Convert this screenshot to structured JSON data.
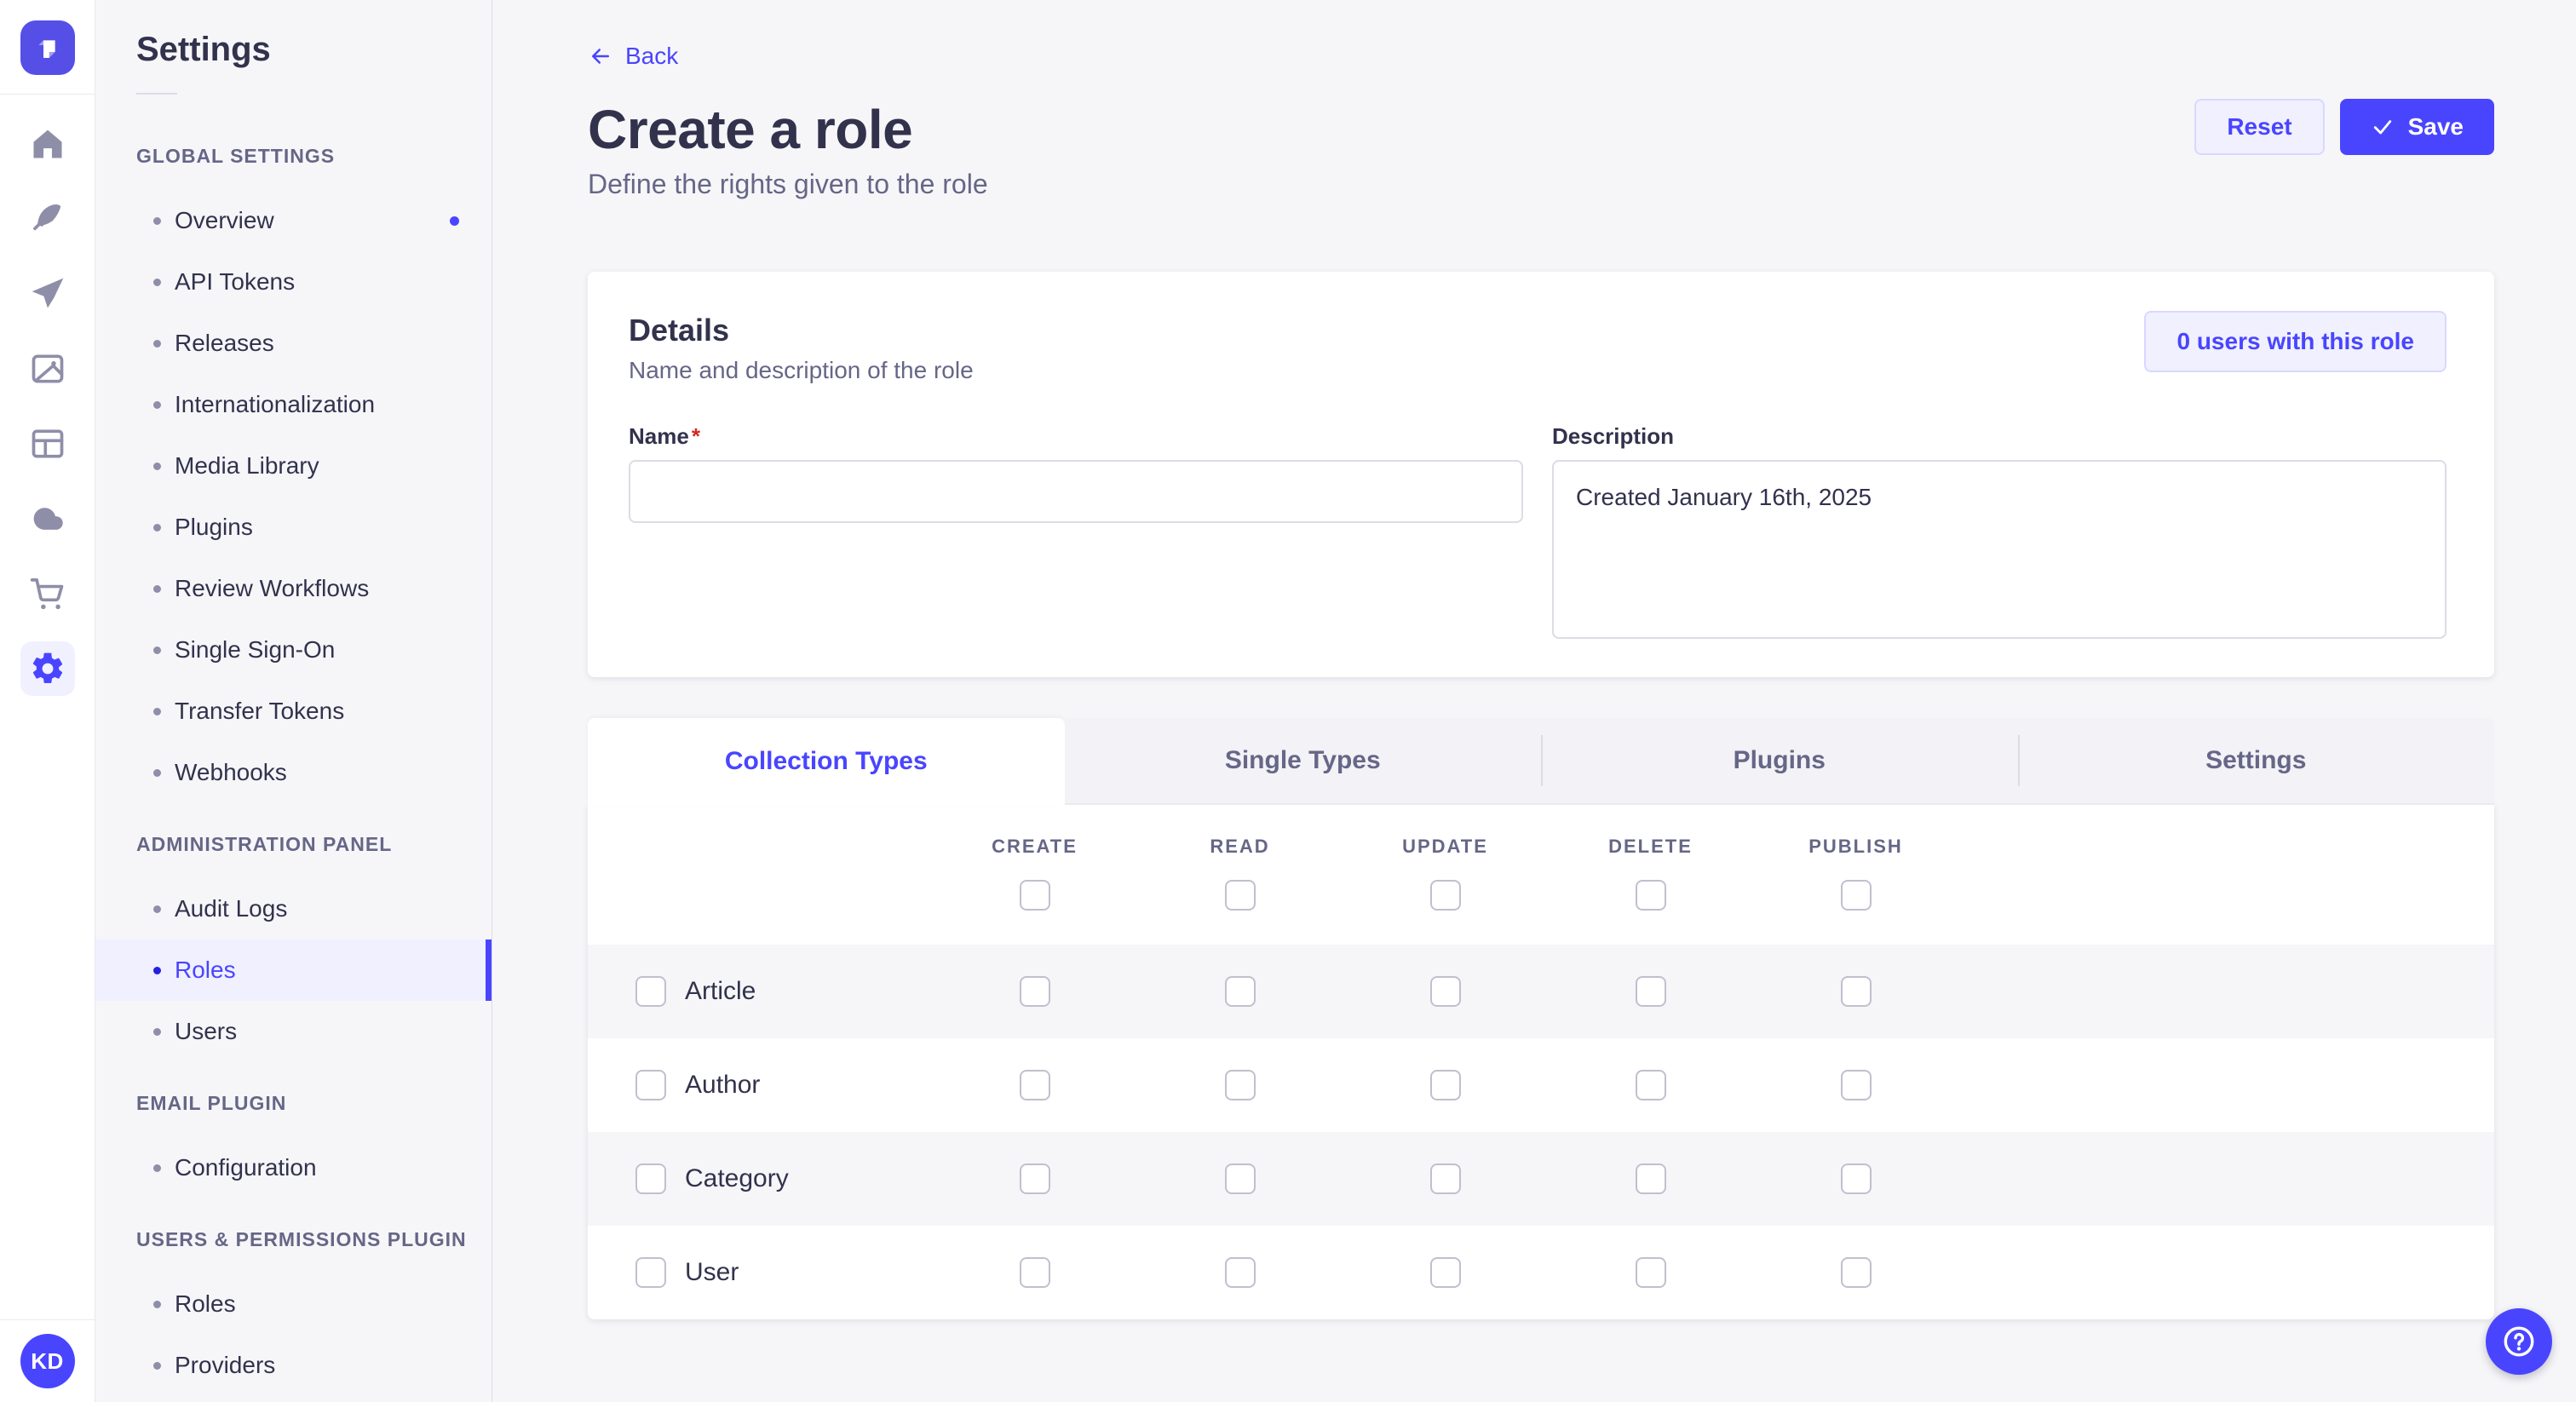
{
  "app": {
    "brand": "Strapi"
  },
  "icon_rail": {
    "items": [
      {
        "name": "home",
        "active": false
      },
      {
        "name": "feather",
        "active": false
      },
      {
        "name": "send",
        "active": false
      },
      {
        "name": "media",
        "active": false
      },
      {
        "name": "layout",
        "active": false
      },
      {
        "name": "cloud",
        "active": false
      },
      {
        "name": "cart",
        "active": false
      },
      {
        "name": "gear",
        "active": true
      }
    ],
    "avatar_initials": "KD"
  },
  "sidebar": {
    "title": "Settings",
    "sections": [
      {
        "label": "GLOBAL SETTINGS",
        "items": [
          {
            "label": "Overview",
            "notification": true
          },
          {
            "label": "API Tokens"
          },
          {
            "label": "Releases"
          },
          {
            "label": "Internationalization"
          },
          {
            "label": "Media Library"
          },
          {
            "label": "Plugins"
          },
          {
            "label": "Review Workflows"
          },
          {
            "label": "Single Sign-On"
          },
          {
            "label": "Transfer Tokens"
          },
          {
            "label": "Webhooks"
          }
        ]
      },
      {
        "label": "ADMINISTRATION PANEL",
        "items": [
          {
            "label": "Audit Logs"
          },
          {
            "label": "Roles",
            "active": true
          },
          {
            "label": "Users"
          }
        ]
      },
      {
        "label": "EMAIL PLUGIN",
        "items": [
          {
            "label": "Configuration"
          }
        ]
      },
      {
        "label": "USERS & PERMISSIONS PLUGIN",
        "items": [
          {
            "label": "Roles"
          },
          {
            "label": "Providers"
          }
        ]
      }
    ]
  },
  "header": {
    "back_label": "Back",
    "title": "Create a role",
    "subtitle": "Define the rights given to the role",
    "reset_label": "Reset",
    "save_label": "Save"
  },
  "details_card": {
    "title": "Details",
    "subtitle": "Name and description of the role",
    "users_button_label": "0 users with this role",
    "name_label": "Name",
    "required_mark": "*",
    "name_value": "",
    "description_label": "Description",
    "description_value": "Created January 16th, 2025"
  },
  "permissions": {
    "tabs": [
      {
        "label": "Collection Types",
        "active": true
      },
      {
        "label": "Single Types",
        "active": false
      },
      {
        "label": "Plugins",
        "active": false
      },
      {
        "label": "Settings",
        "active": false
      }
    ],
    "columns": [
      "CREATE",
      "READ",
      "UPDATE",
      "DELETE",
      "PUBLISH"
    ],
    "header_checks": [
      false,
      false,
      false,
      false,
      false
    ],
    "rows": [
      {
        "label": "Article",
        "row_checked": false,
        "checks": [
          false,
          false,
          false,
          false,
          false
        ]
      },
      {
        "label": "Author",
        "row_checked": false,
        "checks": [
          false,
          false,
          false,
          false,
          false
        ]
      },
      {
        "label": "Category",
        "row_checked": false,
        "checks": [
          false,
          false,
          false,
          false,
          false
        ]
      },
      {
        "label": "User",
        "row_checked": false,
        "checks": [
          false,
          false,
          false,
          false,
          false
        ]
      }
    ]
  },
  "help": {
    "tooltip": "Help"
  },
  "colors": {
    "accent": "#4945FF",
    "accent_light": "#F0F0FF",
    "accent_border": "#D9D8FF",
    "text": "#32324D",
    "text_muted": "#666687",
    "border": "#DCDCE4",
    "page_bg": "#F6F6F9",
    "required_red": "#D02B20"
  }
}
